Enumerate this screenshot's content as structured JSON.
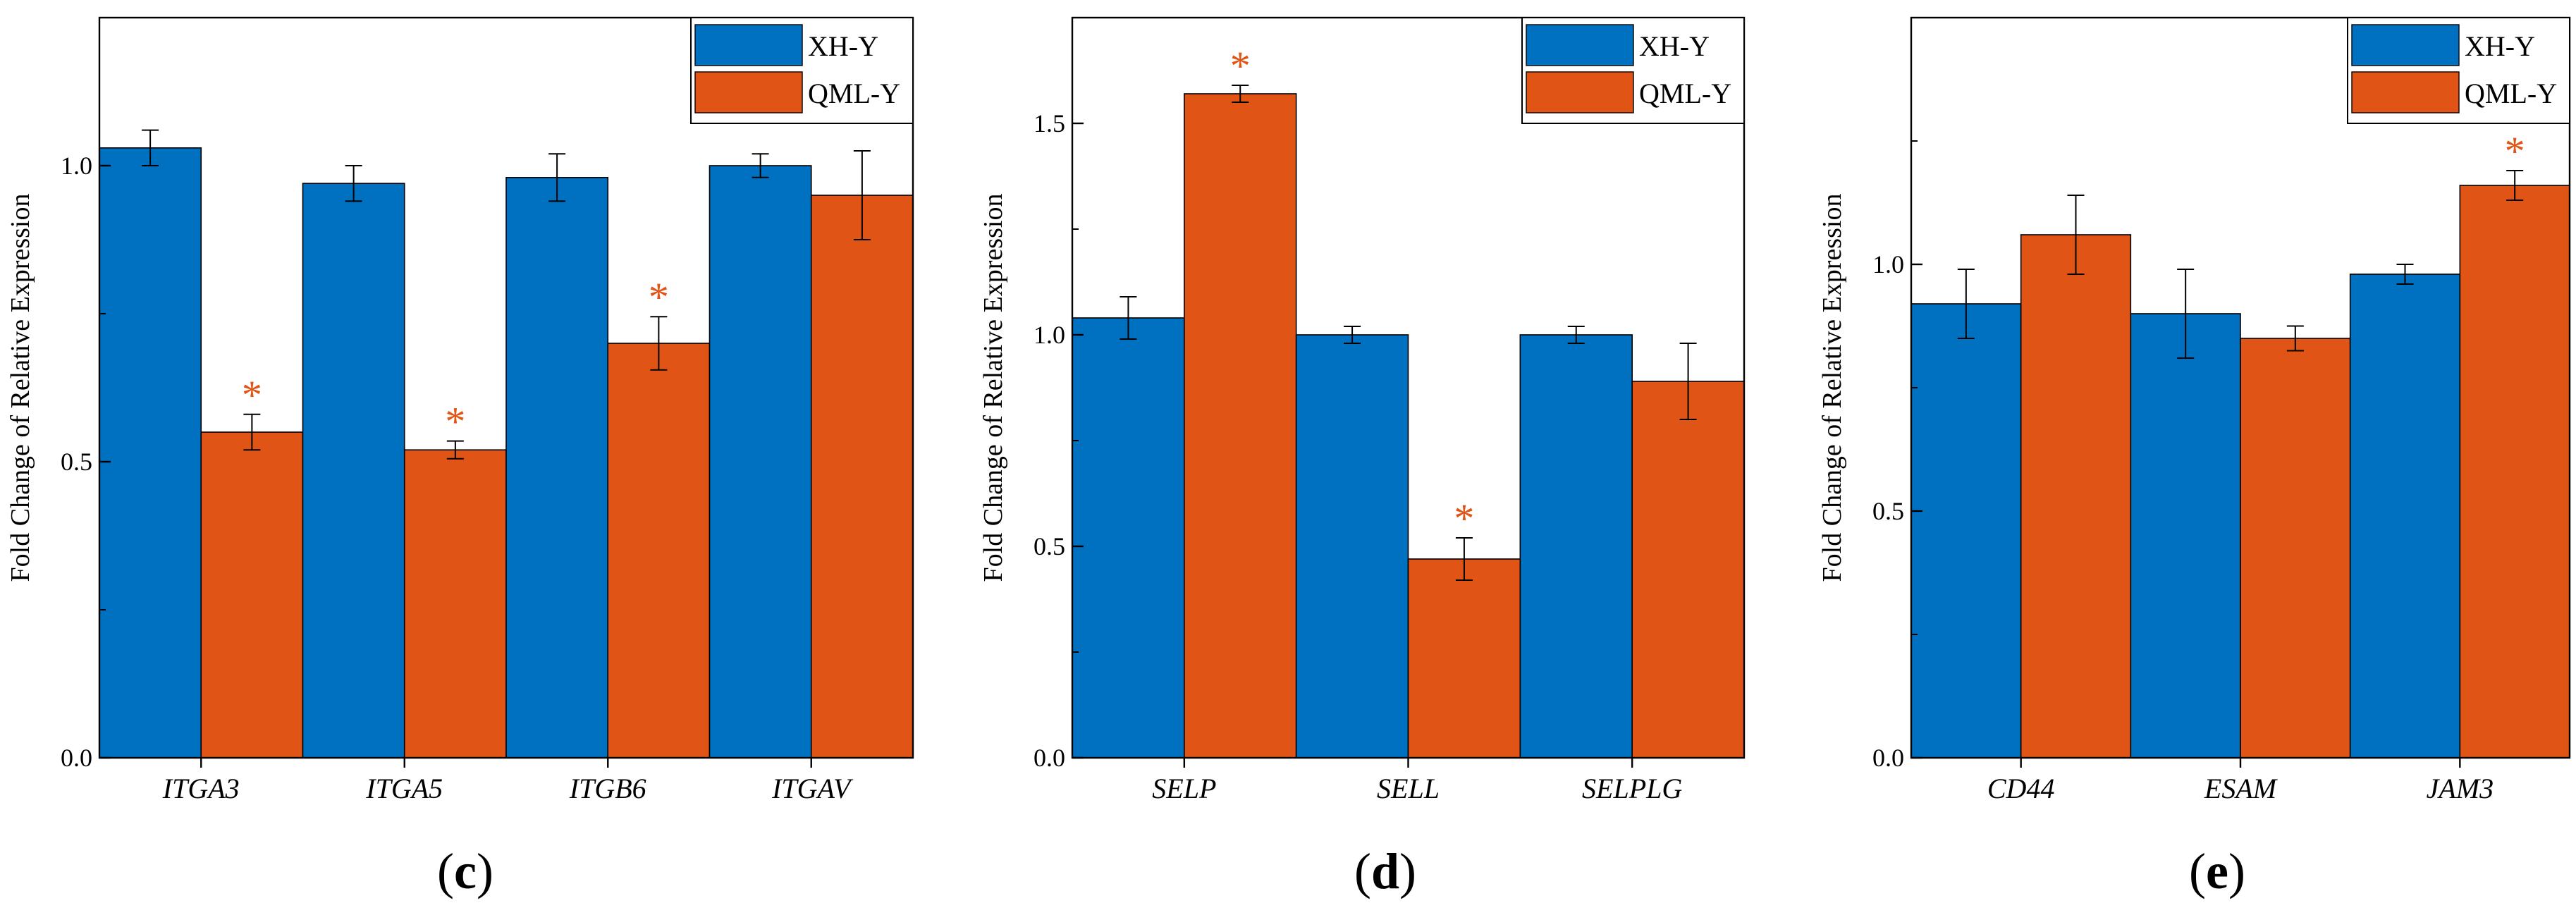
{
  "colors": {
    "xh_y": "#0070C0",
    "qml_y": "#E05416",
    "star": "#E05416",
    "axis": "#000000"
  },
  "chart_data": [
    {
      "panel_label": "(c)",
      "type": "bar",
      "ylabel": "Fold Change of Relative Expression",
      "ylim": [
        0,
        1.25
      ],
      "yticks": [
        0.0,
        0.5,
        1.0
      ],
      "ytick_labels": [
        "0.0",
        "0.5",
        "1.0"
      ],
      "categories": [
        "ITGA3",
        "ITGA5",
        "ITGB6",
        "ITGAV"
      ],
      "legend_position": "top-right",
      "series": [
        {
          "name": "XH-Y",
          "values": [
            1.03,
            0.97,
            0.98,
            1.0
          ],
          "errors": [
            0.03,
            0.03,
            0.04,
            0.02
          ]
        },
        {
          "name": "QML-Y",
          "values": [
            0.55,
            0.52,
            0.7,
            0.95
          ],
          "errors": [
            0.03,
            0.015,
            0.045,
            0.075
          ]
        }
      ],
      "significance": [
        {
          "series": 1,
          "category": 0,
          "mark": "*"
        },
        {
          "series": 1,
          "category": 1,
          "mark": "*"
        },
        {
          "series": 1,
          "category": 2,
          "mark": "*"
        }
      ]
    },
    {
      "panel_label": "(d)",
      "type": "bar",
      "ylabel": "Fold Change of Relative Expression",
      "ylim": [
        0,
        1.75
      ],
      "yticks": [
        0.0,
        0.5,
        1.0,
        1.5
      ],
      "ytick_labels": [
        "0.0",
        "0.5",
        "1.0",
        "1.5"
      ],
      "categories": [
        "SELP",
        "SELL",
        "SELPLG"
      ],
      "legend_position": "top-right",
      "series": [
        {
          "name": "XH-Y",
          "values": [
            1.04,
            1.0,
            1.0
          ],
          "errors": [
            0.05,
            0.02,
            0.02
          ]
        },
        {
          "name": "QML-Y",
          "values": [
            1.57,
            0.47,
            0.89
          ],
          "errors": [
            0.02,
            0.05,
            0.09
          ]
        }
      ],
      "significance": [
        {
          "series": 1,
          "category": 0,
          "mark": "*"
        },
        {
          "series": 1,
          "category": 1,
          "mark": "*"
        }
      ]
    },
    {
      "panel_label": "(e)",
      "type": "bar",
      "ylabel": "Fold Change of Relative Expression",
      "ylim": [
        0,
        1.5
      ],
      "yticks": [
        0.0,
        0.5,
        1.0
      ],
      "ytick_labels": [
        "0.0",
        "0.5",
        "1.0"
      ],
      "categories": [
        "CD44",
        "ESAM",
        "JAM3"
      ],
      "legend_position": "top-right",
      "series": [
        {
          "name": "XH-Y",
          "values": [
            0.92,
            0.9,
            0.98
          ],
          "errors": [
            0.07,
            0.09,
            0.02
          ]
        },
        {
          "name": "QML-Y",
          "values": [
            1.06,
            0.85,
            1.16
          ],
          "errors": [
            0.08,
            0.025,
            0.03
          ]
        }
      ],
      "significance": [
        {
          "series": 1,
          "category": 2,
          "mark": "*"
        }
      ]
    }
  ]
}
